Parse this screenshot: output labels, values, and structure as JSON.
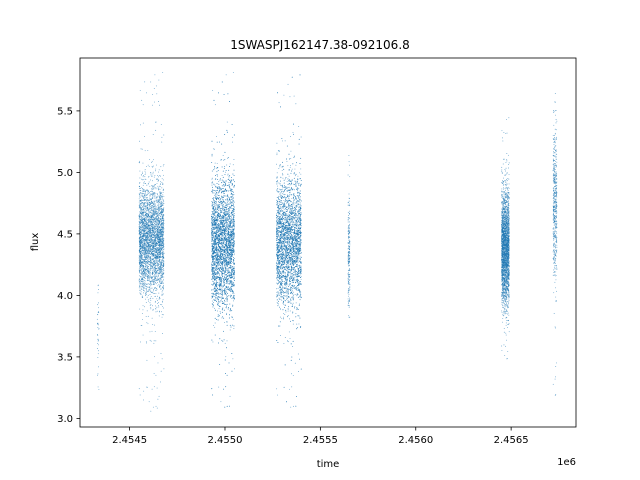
{
  "chart_data": {
    "type": "scatter",
    "title": "1SWASPJ162147.38-092106.8",
    "xlabel": "time",
    "ylabel": "flux",
    "x_offset_label": "1e6",
    "xlim": [
      2454240,
      2456840
    ],
    "ylim": [
      2.93,
      5.93
    ],
    "x_ticks": [
      2.4545,
      2.455,
      2.4555,
      2.456,
      2.4565
    ],
    "x_tick_labels": [
      "2.4545",
      "2.4550",
      "2.4555",
      "2.4560",
      "2.4565"
    ],
    "y_ticks": [
      3.0,
      3.5,
      4.0,
      4.5,
      5.0,
      5.5
    ],
    "y_tick_labels": [
      "3.0",
      "3.5",
      "4.0",
      "4.5",
      "5.0",
      "5.5"
    ],
    "grid": false,
    "legend": "none",
    "point_color": "#1f77b4",
    "series": [
      {
        "clusters": [
          {
            "t_start": 2454330,
            "t_end": 2454340,
            "center": 3.7,
            "spread": 0.25,
            "min": 3.1,
            "max": 4.15,
            "count": 40
          },
          {
            "t_start": 2454550,
            "t_end": 2454680,
            "center": 4.45,
            "spread": 0.22,
            "min": 3.05,
            "max": 5.82,
            "count": 3500
          },
          {
            "t_start": 2454930,
            "t_end": 2455050,
            "center": 4.42,
            "spread": 0.25,
            "min": 3.05,
            "max": 5.82,
            "count": 4500
          },
          {
            "t_start": 2455270,
            "t_end": 2455400,
            "center": 4.43,
            "spread": 0.25,
            "min": 3.05,
            "max": 5.8,
            "count": 4000
          },
          {
            "t_start": 2455645,
            "t_end": 2455655,
            "center": 4.35,
            "spread": 0.22,
            "min": 3.8,
            "max": 5.18,
            "count": 200
          },
          {
            "t_start": 2456450,
            "t_end": 2456490,
            "center": 4.38,
            "spread": 0.22,
            "min": 3.45,
            "max": 5.45,
            "count": 2500
          },
          {
            "t_start": 2456720,
            "t_end": 2456740,
            "center": 4.75,
            "spread": 0.3,
            "min": 3.15,
            "max": 5.65,
            "count": 500
          }
        ]
      }
    ]
  }
}
